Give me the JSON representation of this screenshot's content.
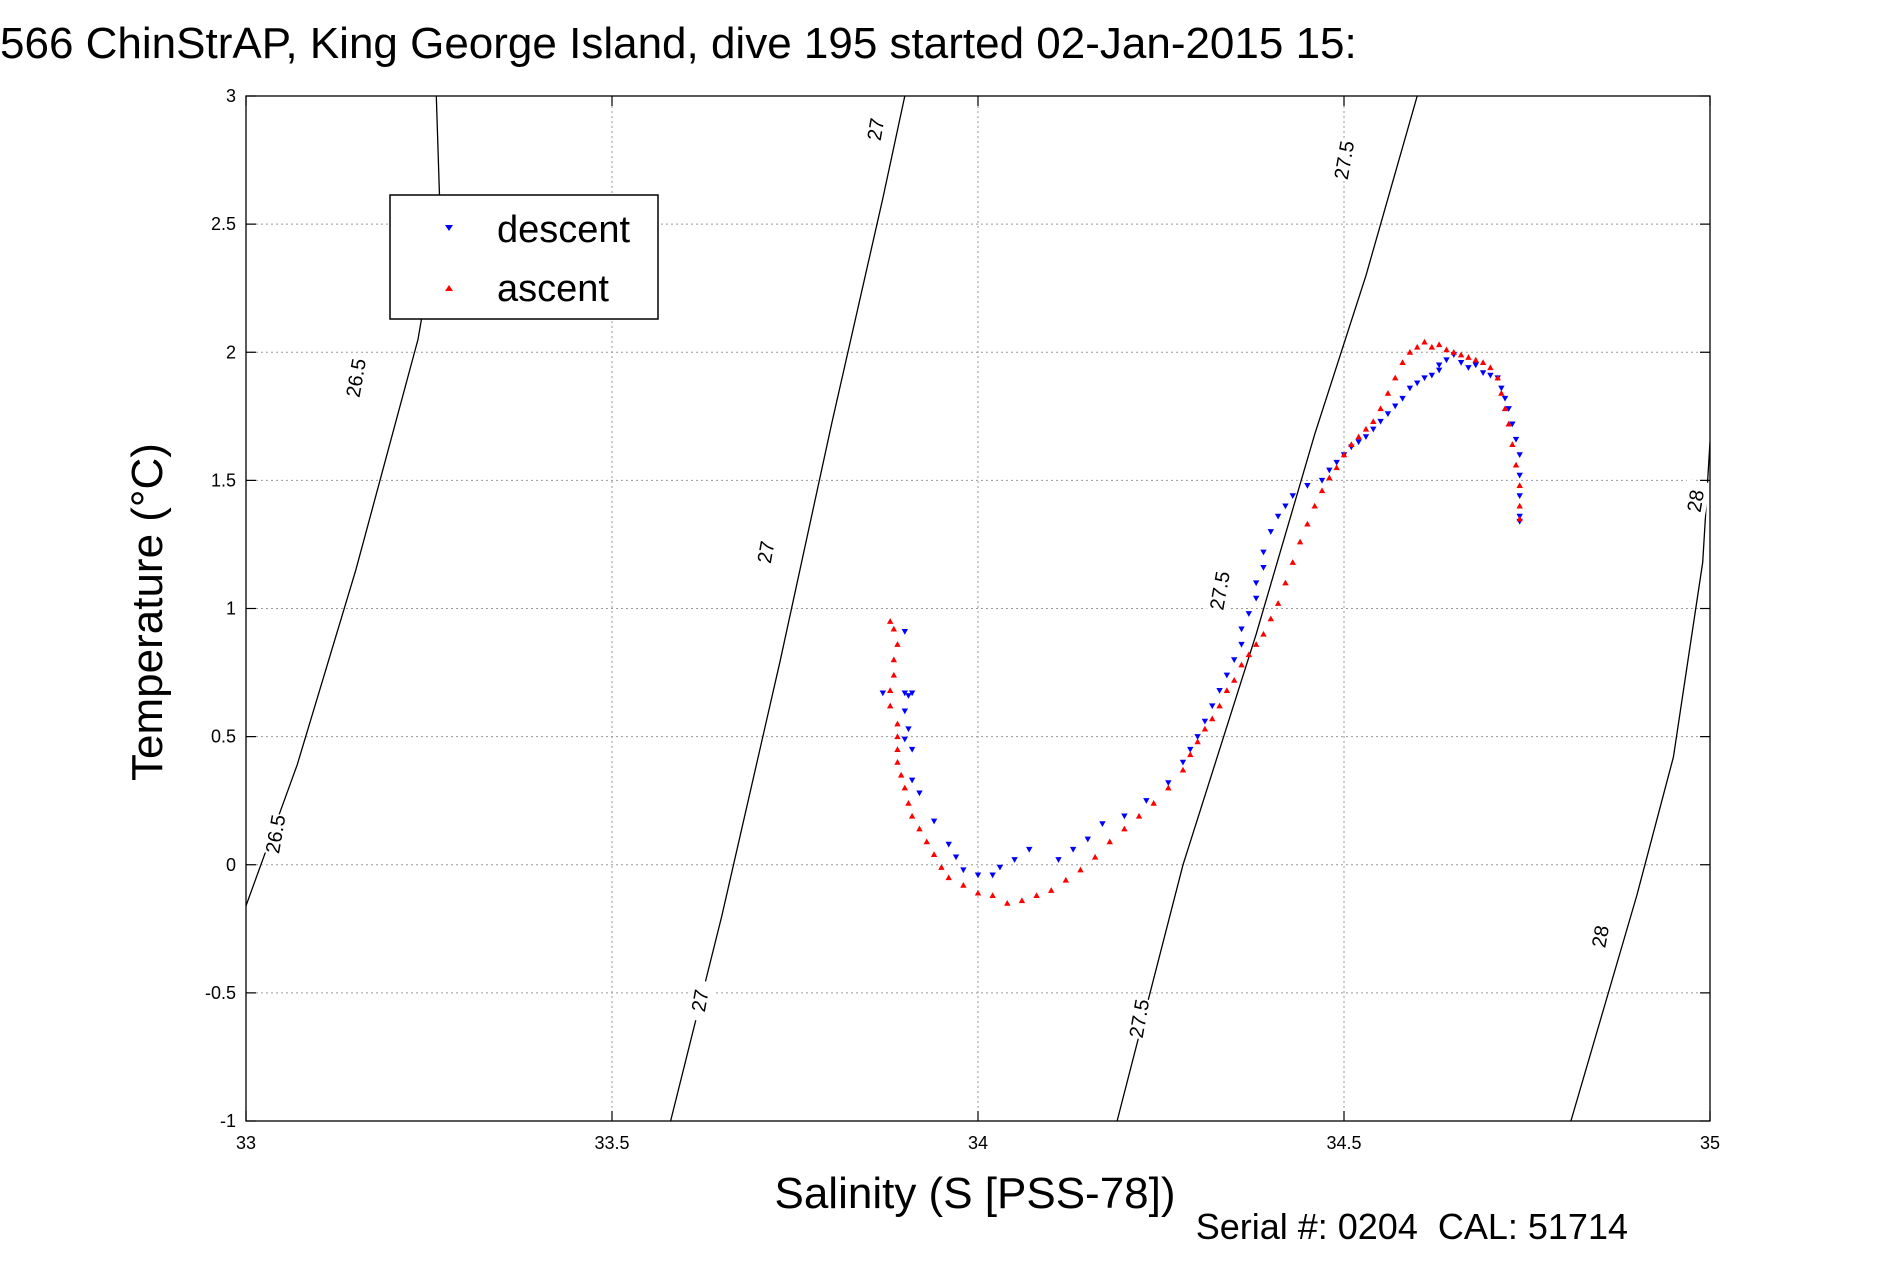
{
  "chart_data": {
    "type": "scatter",
    "title": "566 ChinStrAP, King George Island, dive 195 started 02-Jan-2015 15:",
    "xlabel": "Salinity (S [PSS-78])",
    "ylabel": "Temperature (°C)",
    "footer": "Serial #: 0204  CAL: 51714",
    "xlim": [
      33,
      35
    ],
    "ylim": [
      -1,
      3
    ],
    "xticks": [
      33,
      33.5,
      34,
      34.5,
      35
    ],
    "xtick_labels": [
      "33",
      "33.5",
      "34",
      "34.5",
      "35"
    ],
    "yticks": [
      -1,
      -0.5,
      0,
      0.5,
      1,
      1.5,
      2,
      2.5,
      3
    ],
    "ytick_labels": [
      "-1",
      "-0.5",
      "0",
      "0.5",
      "1",
      "1.5",
      "2",
      "2.5",
      "3"
    ],
    "grid": true,
    "legend_position": "top-left",
    "colors": {
      "descent": "#0000ff",
      "ascent": "#ff0000",
      "contour": "#000000"
    },
    "contours": [
      {
        "level": "26.5",
        "points": [
          [
            33.0,
            -0.16
          ],
          [
            33.07,
            0.39
          ],
          [
            33.15,
            1.15
          ],
          [
            33.235,
            2.05
          ],
          [
            33.265,
            2.55
          ],
          [
            33.26,
            3.0
          ]
        ]
      },
      {
        "level": "27",
        "points": [
          [
            33.58,
            -1.0
          ],
          [
            33.65,
            -0.2
          ],
          [
            33.73,
            0.8
          ],
          [
            33.8,
            1.72
          ],
          [
            33.87,
            2.6
          ],
          [
            33.9,
            3.0
          ]
        ]
      },
      {
        "level": "27.5",
        "points": [
          [
            34.19,
            -1.0
          ],
          [
            34.28,
            0.0
          ],
          [
            34.38,
            0.9
          ],
          [
            34.46,
            1.68
          ],
          [
            34.53,
            2.3
          ],
          [
            34.6,
            3.0
          ]
        ]
      },
      {
        "level": "28",
        "points": [
          [
            34.81,
            -1.0
          ],
          [
            34.9,
            -0.12
          ],
          [
            34.95,
            0.42
          ],
          [
            34.99,
            1.18
          ],
          [
            35.0,
            1.65
          ]
        ]
      }
    ],
    "contour_labels": [
      {
        "level": "26.5",
        "x": 33.04,
        "y": 0.12,
        "angle": -80
      },
      {
        "level": "26.5",
        "x": 33.15,
        "y": 1.9,
        "angle": -80
      },
      {
        "level": "27",
        "x": 33.62,
        "y": -0.53,
        "angle": -80
      },
      {
        "level": "27",
        "x": 33.71,
        "y": 1.22,
        "angle": -80
      },
      {
        "level": "27",
        "x": 33.86,
        "y": 2.87,
        "angle": -80
      },
      {
        "level": "27.5",
        "x": 34.22,
        "y": -0.6,
        "angle": -80
      },
      {
        "level": "27.5",
        "x": 34.33,
        "y": 1.07,
        "angle": -80
      },
      {
        "level": "27.5",
        "x": 34.5,
        "y": 2.75,
        "angle": -80
      },
      {
        "level": "28",
        "x": 34.85,
        "y": -0.28,
        "angle": -80
      },
      {
        "level": "28",
        "x": 34.98,
        "y": 1.42,
        "angle": -80
      }
    ],
    "series": [
      {
        "name": "descent",
        "marker": "triangle-down",
        "points": [
          [
            33.9,
            0.91
          ],
          [
            33.87,
            0.67
          ],
          [
            33.9,
            0.67
          ],
          [
            33.91,
            0.67
          ],
          [
            33.905,
            0.66
          ],
          [
            33.9,
            0.6
          ],
          [
            33.905,
            0.53
          ],
          [
            33.9,
            0.49
          ],
          [
            33.91,
            0.45
          ],
          [
            33.91,
            0.33
          ],
          [
            33.92,
            0.28
          ],
          [
            33.94,
            0.17
          ],
          [
            33.96,
            0.08
          ],
          [
            33.97,
            0.03
          ],
          [
            33.98,
            -0.02
          ],
          [
            34.0,
            -0.04
          ],
          [
            34.02,
            -0.04
          ],
          [
            34.03,
            -0.01
          ],
          [
            34.05,
            0.02
          ],
          [
            34.07,
            0.06
          ],
          [
            34.11,
            0.02
          ],
          [
            34.13,
            0.06
          ],
          [
            34.15,
            0.1
          ],
          [
            34.17,
            0.16
          ],
          [
            34.2,
            0.19
          ],
          [
            34.23,
            0.25
          ],
          [
            34.26,
            0.32
          ],
          [
            34.28,
            0.4
          ],
          [
            34.29,
            0.45
          ],
          [
            34.3,
            0.5
          ],
          [
            34.31,
            0.56
          ],
          [
            34.32,
            0.62
          ],
          [
            34.33,
            0.68
          ],
          [
            34.34,
            0.74
          ],
          [
            34.35,
            0.8
          ],
          [
            34.36,
            0.86
          ],
          [
            34.36,
            0.92
          ],
          [
            34.37,
            0.98
          ],
          [
            34.38,
            1.04
          ],
          [
            34.38,
            1.1
          ],
          [
            34.39,
            1.16
          ],
          [
            34.39,
            1.22
          ],
          [
            34.4,
            1.3
          ],
          [
            34.41,
            1.36
          ],
          [
            34.42,
            1.4
          ],
          [
            34.43,
            1.44
          ],
          [
            34.45,
            1.48
          ],
          [
            34.47,
            1.5
          ],
          [
            34.48,
            1.54
          ],
          [
            34.49,
            1.57
          ],
          [
            34.5,
            1.6
          ],
          [
            34.51,
            1.63
          ],
          [
            34.52,
            1.65
          ],
          [
            34.53,
            1.67
          ],
          [
            34.54,
            1.7
          ],
          [
            34.55,
            1.73
          ],
          [
            34.56,
            1.76
          ],
          [
            34.57,
            1.79
          ],
          [
            34.58,
            1.82
          ],
          [
            34.59,
            1.86
          ],
          [
            34.6,
            1.88
          ],
          [
            34.61,
            1.9
          ],
          [
            34.62,
            1.91
          ],
          [
            34.63,
            1.93
          ],
          [
            34.63,
            1.95
          ],
          [
            34.64,
            1.97
          ],
          [
            34.65,
            1.99
          ],
          [
            34.66,
            1.96
          ],
          [
            34.67,
            1.94
          ],
          [
            34.68,
            1.95
          ],
          [
            34.69,
            1.92
          ],
          [
            34.7,
            1.91
          ],
          [
            34.71,
            1.9
          ],
          [
            34.715,
            1.86
          ],
          [
            34.72,
            1.82
          ],
          [
            34.725,
            1.78
          ],
          [
            34.73,
            1.72
          ],
          [
            34.735,
            1.66
          ],
          [
            34.74,
            1.6
          ],
          [
            34.74,
            1.52
          ],
          [
            34.74,
            1.44
          ],
          [
            34.74,
            1.36
          ],
          [
            34.74,
            1.34
          ]
        ]
      },
      {
        "name": "ascent",
        "marker": "triangle-up",
        "points": [
          [
            33.88,
            0.95
          ],
          [
            33.885,
            0.92
          ],
          [
            33.89,
            0.86
          ],
          [
            33.885,
            0.8
          ],
          [
            33.885,
            0.74
          ],
          [
            33.88,
            0.68
          ],
          [
            33.88,
            0.62
          ],
          [
            33.89,
            0.55
          ],
          [
            33.89,
            0.5
          ],
          [
            33.89,
            0.45
          ],
          [
            33.89,
            0.4
          ],
          [
            33.895,
            0.35
          ],
          [
            33.9,
            0.3
          ],
          [
            33.905,
            0.24
          ],
          [
            33.91,
            0.19
          ],
          [
            33.92,
            0.14
          ],
          [
            33.93,
            0.09
          ],
          [
            33.94,
            0.04
          ],
          [
            33.95,
            -0.01
          ],
          [
            33.96,
            -0.05
          ],
          [
            33.98,
            -0.08
          ],
          [
            34.0,
            -0.11
          ],
          [
            34.02,
            -0.12
          ],
          [
            34.04,
            -0.15
          ],
          [
            34.06,
            -0.14
          ],
          [
            34.08,
            -0.12
          ],
          [
            34.1,
            -0.1
          ],
          [
            34.12,
            -0.06
          ],
          [
            34.14,
            -0.02
          ],
          [
            34.16,
            0.03
          ],
          [
            34.18,
            0.09
          ],
          [
            34.2,
            0.14
          ],
          [
            34.22,
            0.19
          ],
          [
            34.24,
            0.24
          ],
          [
            34.26,
            0.3
          ],
          [
            34.28,
            0.37
          ],
          [
            34.29,
            0.43
          ],
          [
            34.3,
            0.48
          ],
          [
            34.31,
            0.53
          ],
          [
            34.32,
            0.57
          ],
          [
            34.33,
            0.62
          ],
          [
            34.34,
            0.68
          ],
          [
            34.35,
            0.72
          ],
          [
            34.36,
            0.78
          ],
          [
            34.37,
            0.82
          ],
          [
            34.38,
            0.86
          ],
          [
            34.39,
            0.9
          ],
          [
            34.4,
            0.96
          ],
          [
            34.41,
            1.02
          ],
          [
            34.42,
            1.1
          ],
          [
            34.43,
            1.18
          ],
          [
            34.44,
            1.26
          ],
          [
            34.45,
            1.33
          ],
          [
            34.46,
            1.4
          ],
          [
            34.47,
            1.46
          ],
          [
            34.48,
            1.51
          ],
          [
            34.49,
            1.55
          ],
          [
            34.5,
            1.6
          ],
          [
            34.51,
            1.64
          ],
          [
            34.52,
            1.67
          ],
          [
            34.53,
            1.7
          ],
          [
            34.54,
            1.73
          ],
          [
            34.55,
            1.78
          ],
          [
            34.56,
            1.84
          ],
          [
            34.57,
            1.9
          ],
          [
            34.58,
            1.96
          ],
          [
            34.59,
            2.0
          ],
          [
            34.6,
            2.02
          ],
          [
            34.61,
            2.04
          ],
          [
            34.62,
            2.02
          ],
          [
            34.63,
            2.03
          ],
          [
            34.64,
            2.01
          ],
          [
            34.65,
            2.0
          ],
          [
            34.66,
            1.99
          ],
          [
            34.67,
            1.98
          ],
          [
            34.68,
            1.97
          ],
          [
            34.69,
            1.96
          ],
          [
            34.7,
            1.94
          ],
          [
            34.71,
            1.9
          ],
          [
            34.715,
            1.84
          ],
          [
            34.72,
            1.78
          ],
          [
            34.725,
            1.72
          ],
          [
            34.73,
            1.64
          ],
          [
            34.735,
            1.56
          ],
          [
            34.74,
            1.48
          ],
          [
            34.74,
            1.4
          ],
          [
            34.74,
            1.35
          ]
        ]
      }
    ]
  }
}
